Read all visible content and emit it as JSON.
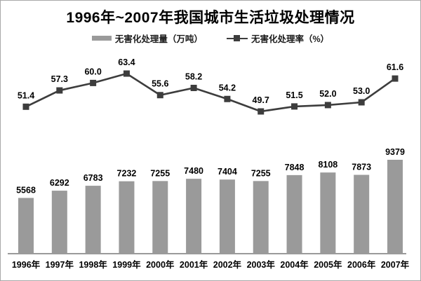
{
  "page": {
    "title": "1996年~2007年我国城市生活垃圾处理情况"
  },
  "legend": {
    "bar_label": "无害化处理量（万吨）",
    "line_label": "无害化处理率（%）"
  },
  "chart_data": {
    "type": "bar",
    "subtype": "bar+line combo",
    "title": "1996年~2007年我国城市生活垃圾处理情况",
    "categories": [
      "1996年",
      "1997年",
      "1998年",
      "1999年",
      "2000年",
      "2001年",
      "2002年",
      "2003年",
      "2004年",
      "2005年",
      "2006年",
      "2007年"
    ],
    "series": [
      {
        "name": "无害化处理量（万吨）",
        "type": "bar",
        "values": [
          5568,
          6292,
          6783,
          7232,
          7255,
          7480,
          7404,
          7255,
          7848,
          8108,
          7873,
          9379
        ]
      },
      {
        "name": "无害化处理率（%）",
        "type": "line",
        "values": [
          51.4,
          57.3,
          60.0,
          63.4,
          55.6,
          58.2,
          54.2,
          49.7,
          51.5,
          52.0,
          53.0,
          61.6
        ]
      }
    ],
    "xlabel": "",
    "ylabel": "",
    "legend_position": "top",
    "data_labels": true,
    "grid": false,
    "axes_hidden": true,
    "colors": {
      "bar": "#9a9a9a",
      "line": "#3d3d3d",
      "marker": "#3d3d3d",
      "axis": "#9a9a9a",
      "text": "#000000",
      "background": "#ffffff",
      "border": "#a8a8a8"
    }
  }
}
